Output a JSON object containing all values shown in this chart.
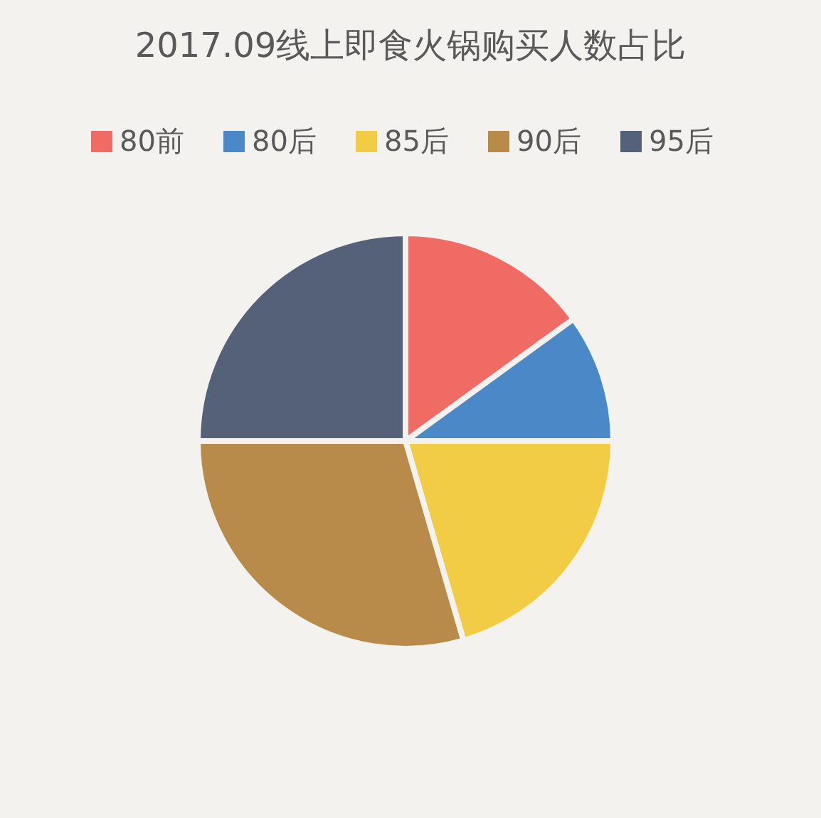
{
  "chart_data": {
    "type": "pie",
    "title": "2017.09线上即食火锅购买人数占比",
    "categories": [
      "80前",
      "80后",
      "85后",
      "90后",
      "95后"
    ],
    "values": [
      15,
      10,
      20.5,
      29.5,
      25
    ],
    "colors": [
      "#f06b63",
      "#4a88c8",
      "#f2cc44",
      "#b98b4a",
      "#546178"
    ],
    "legend": "top"
  }
}
